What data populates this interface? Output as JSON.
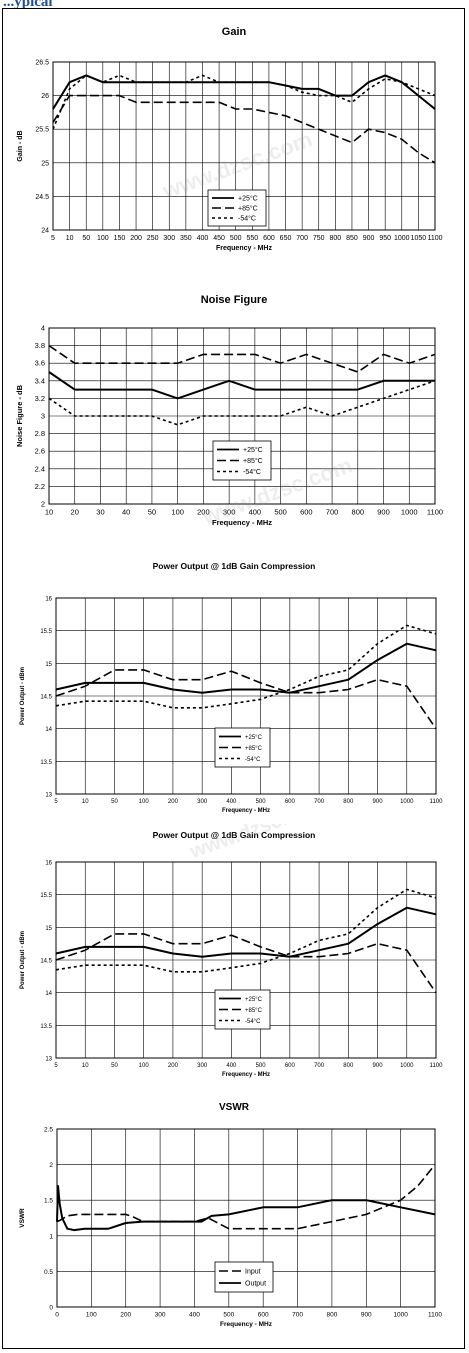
{
  "page": {
    "header_text": "...ypical",
    "watermark": "www.dzsc.com"
  },
  "chart_data": [
    {
      "type": "line",
      "title": "Gain",
      "xlabel": "Frequency - MHz",
      "ylabel": "Gain - dB",
      "categories": [
        "5",
        "10",
        "50",
        "100",
        "150",
        "200",
        "250",
        "300",
        "350",
        "400",
        "450",
        "500",
        "550",
        "600",
        "650",
        "700",
        "750",
        "800",
        "850",
        "900",
        "950",
        "1000",
        "1050",
        "1100"
      ],
      "ylim": [
        24,
        26.5
      ],
      "yticks": [
        "24",
        "24.5",
        "25",
        "25.5",
        "26",
        "26.5"
      ],
      "grid": true,
      "legend": "center-bottom",
      "series": [
        {
          "name": "+25°C",
          "style": "solid",
          "values": [
            25.8,
            26.2,
            26.3,
            26.2,
            26.2,
            26.2,
            26.2,
            26.2,
            26.2,
            26.2,
            26.2,
            26.2,
            26.2,
            26.2,
            26.15,
            26.1,
            26.1,
            26.0,
            26.0,
            26.2,
            26.3,
            26.2,
            26.0,
            25.8
          ]
        },
        {
          "name": "+85°C",
          "style": "dashed",
          "values": [
            25.6,
            26.0,
            26.0,
            26.0,
            26.0,
            25.9,
            25.9,
            25.9,
            25.9,
            25.9,
            25.9,
            25.8,
            25.8,
            25.75,
            25.7,
            25.6,
            25.5,
            25.4,
            25.3,
            25.5,
            25.45,
            25.35,
            25.15,
            25.0
          ]
        },
        {
          "name": "-54°C",
          "style": "dotted",
          "values": [
            25.5,
            26.1,
            26.3,
            26.2,
            26.3,
            26.2,
            26.2,
            26.2,
            26.2,
            26.3,
            26.2,
            26.2,
            26.2,
            26.2,
            26.15,
            26.05,
            26.0,
            26.0,
            25.9,
            26.1,
            26.25,
            26.2,
            26.1,
            26.0
          ]
        }
      ]
    },
    {
      "type": "line",
      "title": "Noise Figure",
      "xlabel": "Frequency - MHz",
      "ylabel": "Noise Figure - dB",
      "categories": [
        "10",
        "20",
        "30",
        "40",
        "50",
        "100",
        "200",
        "300",
        "400",
        "500",
        "600",
        "700",
        "800",
        "900",
        "1000",
        "1100"
      ],
      "ylim": [
        2,
        4
      ],
      "yticks": [
        "2",
        "2.2",
        "2.4",
        "2.6",
        "2.8",
        "3",
        "3.2",
        "3.4",
        "3.6",
        "3.8",
        "4"
      ],
      "grid": true,
      "legend": "center-bottom",
      "series": [
        {
          "name": "+25°C",
          "style": "solid",
          "values": [
            3.5,
            3.3,
            3.3,
            3.3,
            3.3,
            3.2,
            3.3,
            3.4,
            3.3,
            3.3,
            3.3,
            3.3,
            3.3,
            3.4,
            3.4,
            3.4
          ]
        },
        {
          "name": "+85°C",
          "style": "dashed",
          "values": [
            3.8,
            3.6,
            3.6,
            3.6,
            3.6,
            3.6,
            3.7,
            3.7,
            3.7,
            3.6,
            3.7,
            3.6,
            3.5,
            3.7,
            3.6,
            3.7
          ]
        },
        {
          "name": "-54°C",
          "style": "dotted",
          "values": [
            3.2,
            3.0,
            3.0,
            3.0,
            3.0,
            2.9,
            3.0,
            3.0,
            3.0,
            3.0,
            3.1,
            3.0,
            3.1,
            3.2,
            3.3,
            3.4
          ]
        }
      ]
    },
    {
      "type": "line",
      "title": "Power Output @ 1dB Gain Compression",
      "xlabel": "Frequency - MHz",
      "ylabel": "Power Output - dBm",
      "categories": [
        "5",
        "10",
        "50",
        "100",
        "200",
        "300",
        "400",
        "500",
        "600",
        "700",
        "800",
        "900",
        "1000",
        "1100"
      ],
      "ylim": [
        13,
        16
      ],
      "yticks": [
        "13",
        "13.5",
        "14",
        "14.5",
        "15",
        "15.5",
        "16"
      ],
      "grid": true,
      "legend": "center-bottom",
      "series": [
        {
          "name": "+25°C",
          "style": "solid",
          "values": [
            14.6,
            14.7,
            14.7,
            14.7,
            14.6,
            14.55,
            14.6,
            14.6,
            14.55,
            14.65,
            14.75,
            15.05,
            15.3,
            15.2
          ]
        },
        {
          "name": "+85°C",
          "style": "dashed",
          "values": [
            14.5,
            14.65,
            14.9,
            14.9,
            14.75,
            14.75,
            14.88,
            14.7,
            14.55,
            14.55,
            14.6,
            14.75,
            14.65,
            14.0
          ]
        },
        {
          "name": "-54°C",
          "style": "dotted",
          "values": [
            14.35,
            14.42,
            14.42,
            14.42,
            14.32,
            14.32,
            14.38,
            14.45,
            14.6,
            14.8,
            14.9,
            15.3,
            15.58,
            15.45
          ]
        }
      ]
    },
    {
      "type": "line",
      "title": "Power Output @ 1dB Gain Compression",
      "xlabel": "Frequency - MHz",
      "ylabel": "Power Output - dBm",
      "categories": [
        "5",
        "10",
        "50",
        "100",
        "200",
        "300",
        "400",
        "500",
        "600",
        "700",
        "800",
        "900",
        "1000",
        "1100"
      ],
      "ylim": [
        13,
        16
      ],
      "yticks": [
        "13",
        "13.5",
        "14",
        "14.5",
        "15",
        "15.5",
        "16"
      ],
      "grid": true,
      "legend": "center-bottom",
      "series": [
        {
          "name": "+25°C",
          "style": "solid",
          "values": [
            14.6,
            14.7,
            14.7,
            14.7,
            14.6,
            14.55,
            14.6,
            14.6,
            14.55,
            14.65,
            14.75,
            15.05,
            15.3,
            15.2
          ]
        },
        {
          "name": "+85°C",
          "style": "dashed",
          "values": [
            14.5,
            14.65,
            14.9,
            14.9,
            14.75,
            14.75,
            14.88,
            14.7,
            14.55,
            14.55,
            14.6,
            14.75,
            14.65,
            14.0
          ]
        },
        {
          "name": "-54°C",
          "style": "dotted",
          "values": [
            14.35,
            14.42,
            14.42,
            14.42,
            14.32,
            14.32,
            14.38,
            14.45,
            14.6,
            14.8,
            14.9,
            15.3,
            15.58,
            15.45
          ]
        }
      ]
    },
    {
      "type": "line",
      "title": "VSWR",
      "xlabel": "Frequency - MHz",
      "ylabel": "VSWR",
      "xlim": [
        0,
        1100
      ],
      "xticks": [
        "0",
        "100",
        "200",
        "300",
        "400",
        "500",
        "600",
        "700",
        "800",
        "900",
        "1000",
        "1100"
      ],
      "ylim": [
        0,
        2.5
      ],
      "yticks": [
        "0",
        "0.5",
        "1",
        "1.5",
        "2",
        "2.5"
      ],
      "grid": true,
      "legend": "center-bottom",
      "series": [
        {
          "name": "Input",
          "style": "dashed",
          "x": [
            0,
            10,
            30,
            60,
            100,
            150,
            200,
            220,
            250,
            300,
            400,
            440,
            460,
            500,
            600,
            700,
            800,
            900,
            1000,
            1050,
            1100
          ],
          "values": [
            1.2,
            1.22,
            1.28,
            1.3,
            1.3,
            1.3,
            1.3,
            1.27,
            1.2,
            1.2,
            1.2,
            1.25,
            1.2,
            1.1,
            1.1,
            1.1,
            1.2,
            1.3,
            1.5,
            1.7,
            2.0
          ]
        },
        {
          "name": "Output",
          "style": "solid",
          "x": [
            0,
            3,
            8,
            15,
            30,
            50,
            80,
            150,
            200,
            250,
            300,
            400,
            420,
            450,
            500,
            600,
            700,
            800,
            900,
            1000,
            1100
          ],
          "values": [
            1.2,
            1.7,
            1.45,
            1.25,
            1.1,
            1.08,
            1.1,
            1.1,
            1.18,
            1.2,
            1.2,
            1.2,
            1.2,
            1.28,
            1.3,
            1.4,
            1.4,
            1.5,
            1.5,
            1.4,
            1.3
          ]
        }
      ]
    }
  ]
}
